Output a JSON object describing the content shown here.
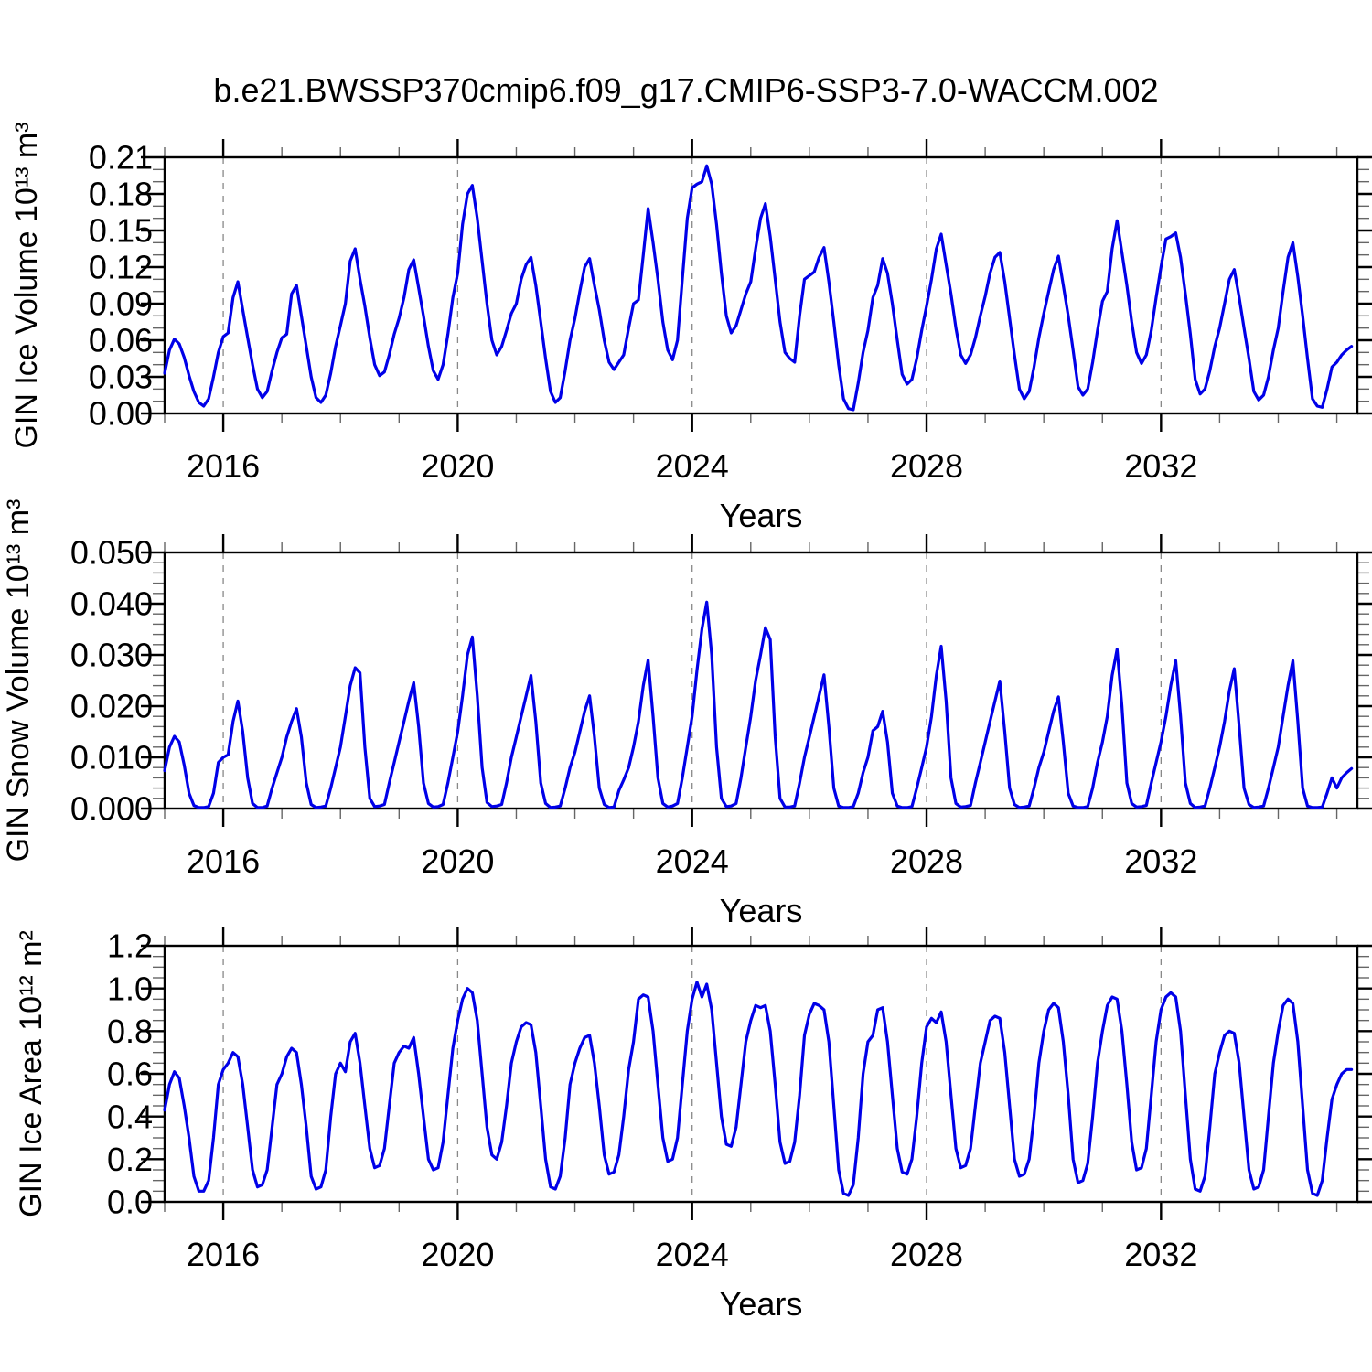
{
  "title": "b.e21.BWSSP370cmip6.f09_g17.CMIP6-SSP3-7.0-WACCM.002",
  "colors": {
    "line": "#0000e8",
    "grid": "#888888",
    "axis": "#000000",
    "minor_tick": "#666666"
  },
  "chart_data": [
    {
      "type": "line",
      "title": "b.e21.BWSSP370cmip6.f09_g17.CMIP6-SSP3-7.0-WACCM.002",
      "xlabel": "Years",
      "ylabel": "GIN Ice Volume 10¹³ m³",
      "xlim": [
        2015.0,
        2035.35
      ],
      "ylim": [
        0,
        0.21
      ],
      "x_ticks": [
        "2016",
        "2020",
        "2024",
        "2028",
        "2032"
      ],
      "x_tick_values": [
        2016,
        2020,
        2024,
        2028,
        2032
      ],
      "x_minor_step": 1,
      "y_ticks": [
        "0.00",
        "0.03",
        "0.06",
        "0.09",
        "0.12",
        "0.15",
        "0.18",
        "0.21"
      ],
      "y_tick_values": [
        0.0,
        0.03,
        0.06,
        0.09,
        0.12,
        0.15,
        0.18,
        0.21
      ],
      "y_minor_step": 0.01,
      "grid": "vertical-dashed-at-major-x",
      "legend_position": "none",
      "series": [
        {
          "name": "GIN Ice Volume (monthly)",
          "x_start": 2015.0,
          "x_step_years": 0.0833333,
          "values": [
            0.033,
            0.052,
            0.061,
            0.057,
            0.046,
            0.031,
            0.018,
            0.009,
            0.006,
            0.012,
            0.03,
            0.05,
            0.063,
            0.066,
            0.095,
            0.108,
            0.085,
            0.062,
            0.04,
            0.02,
            0.013,
            0.018,
            0.035,
            0.05,
            0.062,
            0.065,
            0.098,
            0.105,
            0.08,
            0.055,
            0.03,
            0.013,
            0.009,
            0.015,
            0.033,
            0.055,
            0.072,
            0.09,
            0.125,
            0.135,
            0.11,
            0.088,
            0.062,
            0.04,
            0.031,
            0.034,
            0.048,
            0.065,
            0.078,
            0.095,
            0.118,
            0.126,
            0.103,
            0.08,
            0.055,
            0.035,
            0.028,
            0.04,
            0.065,
            0.095,
            0.115,
            0.155,
            0.18,
            0.187,
            0.16,
            0.125,
            0.09,
            0.06,
            0.048,
            0.055,
            0.068,
            0.082,
            0.09,
            0.11,
            0.122,
            0.128,
            0.105,
            0.075,
            0.045,
            0.018,
            0.009,
            0.013,
            0.035,
            0.06,
            0.078,
            0.1,
            0.12,
            0.127,
            0.105,
            0.085,
            0.06,
            0.042,
            0.036,
            0.042,
            0.048,
            0.07,
            0.09,
            0.093,
            0.13,
            0.168,
            0.14,
            0.11,
            0.075,
            0.052,
            0.044,
            0.06,
            0.11,
            0.16,
            0.185,
            0.188,
            0.19,
            0.203,
            0.188,
            0.155,
            0.115,
            0.08,
            0.066,
            0.072,
            0.085,
            0.098,
            0.108,
            0.135,
            0.16,
            0.172,
            0.145,
            0.11,
            0.075,
            0.05,
            0.045,
            0.042,
            0.08,
            0.11,
            0.113,
            0.116,
            0.128,
            0.136,
            0.108,
            0.075,
            0.04,
            0.012,
            0.004,
            0.003,
            0.025,
            0.05,
            0.068,
            0.095,
            0.105,
            0.127,
            0.115,
            0.09,
            0.06,
            0.032,
            0.024,
            0.028,
            0.045,
            0.068,
            0.088,
            0.11,
            0.135,
            0.147,
            0.122,
            0.098,
            0.07,
            0.048,
            0.041,
            0.048,
            0.062,
            0.08,
            0.096,
            0.115,
            0.128,
            0.132,
            0.108,
            0.078,
            0.048,
            0.02,
            0.012,
            0.018,
            0.038,
            0.062,
            0.082,
            0.1,
            0.118,
            0.129,
            0.105,
            0.08,
            0.052,
            0.022,
            0.015,
            0.02,
            0.042,
            0.068,
            0.092,
            0.1,
            0.135,
            0.158,
            0.132,
            0.105,
            0.075,
            0.05,
            0.041,
            0.048,
            0.068,
            0.095,
            0.12,
            0.143,
            0.145,
            0.148,
            0.128,
            0.098,
            0.065,
            0.028,
            0.016,
            0.02,
            0.035,
            0.055,
            0.07,
            0.09,
            0.11,
            0.118,
            0.095,
            0.07,
            0.045,
            0.018,
            0.011,
            0.015,
            0.03,
            0.052,
            0.07,
            0.1,
            0.128,
            0.14,
            0.112,
            0.08,
            0.045,
            0.012,
            0.006,
            0.005,
            0.02,
            0.038,
            0.042,
            0.048,
            0.052,
            0.055
          ]
        }
      ]
    },
    {
      "type": "line",
      "title": "",
      "xlabel": "Years",
      "ylabel": "GIN Snow Volume 10¹³ m³",
      "xlim": [
        2015.0,
        2035.35
      ],
      "ylim": [
        0,
        0.05
      ],
      "x_ticks": [
        "2016",
        "2020",
        "2024",
        "2028",
        "2032"
      ],
      "x_tick_values": [
        2016,
        2020,
        2024,
        2028,
        2032
      ],
      "x_minor_step": 1,
      "y_ticks": [
        "0.000",
        "0.010",
        "0.020",
        "0.030",
        "0.040",
        "0.050"
      ],
      "y_tick_values": [
        0.0,
        0.01,
        0.02,
        0.03,
        0.04,
        0.05
      ],
      "y_minor_step": 0.002,
      "grid": "vertical-dashed-at-major-x",
      "legend_position": "none",
      "series": [
        {
          "name": "GIN Snow Volume (monthly)",
          "x_start": 2015.0,
          "x_step_years": 0.0833333,
          "values": [
            0.0074,
            0.012,
            0.0141,
            0.013,
            0.0085,
            0.003,
            0.0006,
            0.0002,
            0.0002,
            0.0004,
            0.003,
            0.009,
            0.01,
            0.0105,
            0.017,
            0.021,
            0.015,
            0.006,
            0.001,
            0.0002,
            0.0002,
            0.0005,
            0.004,
            0.007,
            0.01,
            0.014,
            0.017,
            0.0195,
            0.014,
            0.005,
            0.0008,
            0.0002,
            0.0003,
            0.0005,
            0.004,
            0.008,
            0.012,
            0.018,
            0.024,
            0.0275,
            0.0265,
            0.012,
            0.002,
            0.0004,
            0.0005,
            0.0008,
            0.005,
            0.009,
            0.013,
            0.017,
            0.021,
            0.0246,
            0.016,
            0.005,
            0.001,
            0.0003,
            0.0004,
            0.0008,
            0.005,
            0.01,
            0.015,
            0.022,
            0.03,
            0.0335,
            0.022,
            0.008,
            0.0012,
            0.0004,
            0.0005,
            0.0008,
            0.005,
            0.01,
            0.014,
            0.018,
            0.022,
            0.026,
            0.017,
            0.005,
            0.001,
            0.0002,
            0.0003,
            0.0005,
            0.004,
            0.008,
            0.011,
            0.015,
            0.019,
            0.022,
            0.014,
            0.004,
            0.0008,
            0.0002,
            0.0003,
            0.0035,
            0.0056,
            0.008,
            0.012,
            0.017,
            0.024,
            0.029,
            0.018,
            0.006,
            0.001,
            0.0003,
            0.0005,
            0.001,
            0.006,
            0.012,
            0.018,
            0.027,
            0.035,
            0.0403,
            0.03,
            0.012,
            0.002,
            0.0004,
            0.0005,
            0.001,
            0.006,
            0.012,
            0.018,
            0.025,
            0.03,
            0.0353,
            0.033,
            0.014,
            0.002,
            0.0003,
            0.0003,
            0.0005,
            0.005,
            0.01,
            0.014,
            0.018,
            0.022,
            0.0261,
            0.016,
            0.004,
            0.0005,
            0.0002,
            0.0002,
            0.0004,
            0.003,
            0.007,
            0.01,
            0.0152,
            0.016,
            0.019,
            0.013,
            0.003,
            0.0005,
            0.0002,
            0.0002,
            0.0004,
            0.004,
            0.008,
            0.012,
            0.018,
            0.026,
            0.0317,
            0.021,
            0.006,
            0.001,
            0.0003,
            0.0004,
            0.0006,
            0.005,
            0.009,
            0.013,
            0.017,
            0.021,
            0.0249,
            0.015,
            0.004,
            0.0008,
            0.0002,
            0.0003,
            0.0005,
            0.004,
            0.008,
            0.011,
            0.015,
            0.019,
            0.0218,
            0.013,
            0.003,
            0.0005,
            0.0002,
            0.0002,
            0.0004,
            0.004,
            0.009,
            0.013,
            0.018,
            0.026,
            0.0311,
            0.02,
            0.005,
            0.001,
            0.0003,
            0.0004,
            0.0006,
            0.005,
            0.009,
            0.013,
            0.018,
            0.024,
            0.0289,
            0.018,
            0.005,
            0.001,
            0.0002,
            0.0003,
            0.0005,
            0.004,
            0.008,
            0.012,
            0.017,
            0.023,
            0.0273,
            0.016,
            0.004,
            0.0008,
            0.0002,
            0.0003,
            0.0005,
            0.004,
            0.008,
            0.012,
            0.018,
            0.024,
            0.0289,
            0.017,
            0.004,
            0.0005,
            0.0002,
            0.0002,
            0.0003,
            0.003,
            0.006,
            0.004,
            0.006,
            0.007,
            0.0078
          ]
        }
      ]
    },
    {
      "type": "line",
      "title": "",
      "xlabel": "Years",
      "ylabel": "GIN Ice Area 10¹² m²",
      "xlim": [
        2015.0,
        2035.35
      ],
      "ylim": [
        0,
        1.2
      ],
      "x_ticks": [
        "2016",
        "2020",
        "2024",
        "2028",
        "2032"
      ],
      "x_tick_values": [
        2016,
        2020,
        2024,
        2028,
        2032
      ],
      "x_minor_step": 1,
      "y_ticks": [
        "0.0",
        "0.2",
        "0.4",
        "0.6",
        "0.8",
        "1.0",
        "1.2"
      ],
      "y_tick_values": [
        0.0,
        0.2,
        0.4,
        0.6,
        0.8,
        1.0,
        1.2
      ],
      "y_minor_step": 0.05,
      "grid": "vertical-dashed-at-major-x",
      "legend_position": "none",
      "series": [
        {
          "name": "GIN Ice Area (monthly)",
          "x_start": 2015.0,
          "x_step_years": 0.0833333,
          "values": [
            0.43,
            0.55,
            0.61,
            0.58,
            0.45,
            0.3,
            0.12,
            0.05,
            0.05,
            0.1,
            0.3,
            0.55,
            0.62,
            0.65,
            0.7,
            0.68,
            0.55,
            0.35,
            0.15,
            0.07,
            0.08,
            0.15,
            0.35,
            0.55,
            0.6,
            0.68,
            0.72,
            0.7,
            0.55,
            0.35,
            0.12,
            0.06,
            0.07,
            0.15,
            0.4,
            0.6,
            0.65,
            0.61,
            0.75,
            0.79,
            0.65,
            0.45,
            0.25,
            0.16,
            0.17,
            0.25,
            0.45,
            0.65,
            0.7,
            0.73,
            0.72,
            0.77,
            0.6,
            0.4,
            0.2,
            0.15,
            0.16,
            0.28,
            0.5,
            0.72,
            0.85,
            0.95,
            1.0,
            0.98,
            0.85,
            0.6,
            0.35,
            0.22,
            0.2,
            0.28,
            0.45,
            0.65,
            0.75,
            0.82,
            0.84,
            0.83,
            0.7,
            0.45,
            0.2,
            0.07,
            0.06,
            0.12,
            0.3,
            0.55,
            0.65,
            0.72,
            0.77,
            0.78,
            0.65,
            0.45,
            0.22,
            0.13,
            0.14,
            0.22,
            0.4,
            0.62,
            0.75,
            0.95,
            0.97,
            0.96,
            0.8,
            0.55,
            0.3,
            0.19,
            0.2,
            0.3,
            0.55,
            0.8,
            0.95,
            1.03,
            0.96,
            1.02,
            0.9,
            0.65,
            0.4,
            0.27,
            0.26,
            0.35,
            0.55,
            0.75,
            0.85,
            0.92,
            0.91,
            0.92,
            0.8,
            0.55,
            0.28,
            0.18,
            0.19,
            0.28,
            0.5,
            0.78,
            0.88,
            0.93,
            0.92,
            0.9,
            0.75,
            0.45,
            0.15,
            0.04,
            0.03,
            0.08,
            0.3,
            0.6,
            0.75,
            0.78,
            0.9,
            0.91,
            0.75,
            0.5,
            0.25,
            0.14,
            0.13,
            0.2,
            0.4,
            0.65,
            0.82,
            0.86,
            0.84,
            0.89,
            0.75,
            0.5,
            0.25,
            0.16,
            0.17,
            0.25,
            0.45,
            0.65,
            0.75,
            0.85,
            0.87,
            0.86,
            0.7,
            0.45,
            0.2,
            0.12,
            0.13,
            0.2,
            0.4,
            0.65,
            0.8,
            0.9,
            0.93,
            0.91,
            0.75,
            0.5,
            0.2,
            0.09,
            0.1,
            0.18,
            0.4,
            0.65,
            0.8,
            0.92,
            0.96,
            0.95,
            0.8,
            0.55,
            0.28,
            0.15,
            0.16,
            0.25,
            0.5,
            0.75,
            0.9,
            0.96,
            0.98,
            0.96,
            0.8,
            0.5,
            0.2,
            0.06,
            0.05,
            0.12,
            0.35,
            0.6,
            0.7,
            0.78,
            0.8,
            0.79,
            0.65,
            0.4,
            0.15,
            0.06,
            0.07,
            0.15,
            0.4,
            0.65,
            0.8,
            0.92,
            0.95,
            0.93,
            0.75,
            0.45,
            0.15,
            0.04,
            0.03,
            0.1,
            0.3,
            0.48,
            0.55,
            0.6,
            0.62,
            0.62
          ]
        }
      ]
    }
  ]
}
